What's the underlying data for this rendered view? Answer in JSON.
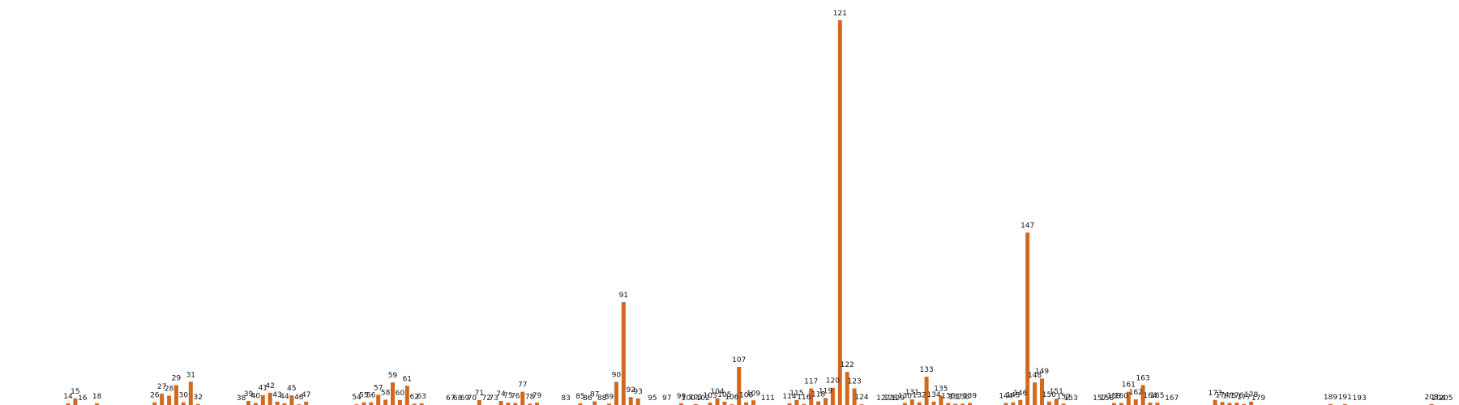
{
  "chart_data": {
    "type": "bar",
    "title": "",
    "xlabel": "",
    "ylabel": "",
    "bar_color": "#d2691e",
    "ylim": [
      0,
      116
    ],
    "grid": false,
    "axes_visible": false,
    "points": [
      {
        "x": 14,
        "y": 0.5
      },
      {
        "x": 15,
        "y": 2.0
      },
      {
        "x": 16,
        "y": 0.0
      },
      {
        "x": 18,
        "y": 0.5
      },
      {
        "x": 26,
        "y": 0.8
      },
      {
        "x": 27,
        "y": 3.4
      },
      {
        "x": 28,
        "y": 2.8
      },
      {
        "x": 29,
        "y": 6.0
      },
      {
        "x": 30,
        "y": 0.8
      },
      {
        "x": 31,
        "y": 7.0
      },
      {
        "x": 32,
        "y": 0.3
      },
      {
        "x": 38,
        "y": 0.0
      },
      {
        "x": 39,
        "y": 1.2
      },
      {
        "x": 40,
        "y": 0.6
      },
      {
        "x": 41,
        "y": 3.0
      },
      {
        "x": 42,
        "y": 3.7
      },
      {
        "x": 43,
        "y": 1.0
      },
      {
        "x": 44,
        "y": 0.5
      },
      {
        "x": 45,
        "y": 2.9
      },
      {
        "x": 46,
        "y": 0.2
      },
      {
        "x": 47,
        "y": 1.0
      },
      {
        "x": 54,
        "y": 0.2
      },
      {
        "x": 55,
        "y": 0.8
      },
      {
        "x": 56,
        "y": 0.8
      },
      {
        "x": 57,
        "y": 3.1
      },
      {
        "x": 58,
        "y": 1.6
      },
      {
        "x": 59,
        "y": 6.8
      },
      {
        "x": 60,
        "y": 1.5
      },
      {
        "x": 61,
        "y": 5.8
      },
      {
        "x": 62,
        "y": 0.4
      },
      {
        "x": 63,
        "y": 0.5
      },
      {
        "x": 67,
        "y": 0.0
      },
      {
        "x": 68,
        "y": 0.0
      },
      {
        "x": 69,
        "y": 0.0
      },
      {
        "x": 70,
        "y": 0.0
      },
      {
        "x": 71,
        "y": 1.5
      },
      {
        "x": 72,
        "y": 0.0
      },
      {
        "x": 73,
        "y": 0.0
      },
      {
        "x": 74,
        "y": 1.2
      },
      {
        "x": 75,
        "y": 0.7
      },
      {
        "x": 76,
        "y": 0.6
      },
      {
        "x": 77,
        "y": 4.0
      },
      {
        "x": 78,
        "y": 0.4
      },
      {
        "x": 79,
        "y": 0.7
      },
      {
        "x": 83,
        "y": 0.0
      },
      {
        "x": 85,
        "y": 0.5
      },
      {
        "x": 86,
        "y": 0.0
      },
      {
        "x": 87,
        "y": 1.1
      },
      {
        "x": 88,
        "y": 0.0
      },
      {
        "x": 89,
        "y": 0.4
      },
      {
        "x": 90,
        "y": 7.0
      },
      {
        "x": 91,
        "y": 31.0
      },
      {
        "x": 92,
        "y": 2.4
      },
      {
        "x": 93,
        "y": 2.0
      },
      {
        "x": 95,
        "y": 0.0
      },
      {
        "x": 97,
        "y": 0.0
      },
      {
        "x": 99,
        "y": 0.5
      },
      {
        "x": 100,
        "y": 0.0
      },
      {
        "x": 101,
        "y": 0.3
      },
      {
        "x": 102,
        "y": 0.0
      },
      {
        "x": 103,
        "y": 0.7
      },
      {
        "x": 104,
        "y": 2.0
      },
      {
        "x": 105,
        "y": 1.0
      },
      {
        "x": 106,
        "y": 0.2
      },
      {
        "x": 107,
        "y": 11.5
      },
      {
        "x": 108,
        "y": 0.8
      },
      {
        "x": 109,
        "y": 1.4
      },
      {
        "x": 111,
        "y": 0.0
      },
      {
        "x": 114,
        "y": 0.5
      },
      {
        "x": 115,
        "y": 1.5
      },
      {
        "x": 116,
        "y": 0.3
      },
      {
        "x": 117,
        "y": 5.0
      },
      {
        "x": 118,
        "y": 1.1
      },
      {
        "x": 119,
        "y": 2.1
      },
      {
        "x": 120,
        "y": 5.2
      },
      {
        "x": 121,
        "y": 116.0
      },
      {
        "x": 122,
        "y": 10.0
      },
      {
        "x": 123,
        "y": 5.0
      },
      {
        "x": 124,
        "y": 0.2
      },
      {
        "x": 127,
        "y": 0.0
      },
      {
        "x": 128,
        "y": 0.0
      },
      {
        "x": 129,
        "y": 0.0
      },
      {
        "x": 130,
        "y": 0.6
      },
      {
        "x": 131,
        "y": 1.7
      },
      {
        "x": 132,
        "y": 0.8
      },
      {
        "x": 133,
        "y": 8.5
      },
      {
        "x": 134,
        "y": 1.0
      },
      {
        "x": 135,
        "y": 2.8
      },
      {
        "x": 136,
        "y": 0.6
      },
      {
        "x": 137,
        "y": 0.4
      },
      {
        "x": 138,
        "y": 0.4
      },
      {
        "x": 139,
        "y": 0.6
      },
      {
        "x": 144,
        "y": 0.6
      },
      {
        "x": 145,
        "y": 0.8
      },
      {
        "x": 146,
        "y": 1.5
      },
      {
        "x": 147,
        "y": 52.0
      },
      {
        "x": 148,
        "y": 6.8
      },
      {
        "x": 149,
        "y": 8.0
      },
      {
        "x": 150,
        "y": 1.0
      },
      {
        "x": 151,
        "y": 1.9
      },
      {
        "x": 152,
        "y": 0.4
      },
      {
        "x": 153,
        "y": 0.0
      },
      {
        "x": 157,
        "y": 0.0
      },
      {
        "x": 158,
        "y": 0.0
      },
      {
        "x": 159,
        "y": 0.6
      },
      {
        "x": 160,
        "y": 0.6
      },
      {
        "x": 161,
        "y": 4.0
      },
      {
        "x": 162,
        "y": 1.7
      },
      {
        "x": 163,
        "y": 6.0
      },
      {
        "x": 164,
        "y": 0.7
      },
      {
        "x": 165,
        "y": 0.7
      },
      {
        "x": 167,
        "y": 0.0
      },
      {
        "x": 173,
        "y": 1.5
      },
      {
        "x": 174,
        "y": 0.9
      },
      {
        "x": 175,
        "y": 0.6
      },
      {
        "x": 176,
        "y": 0.7
      },
      {
        "x": 177,
        "y": 0.3
      },
      {
        "x": 178,
        "y": 1.0
      },
      {
        "x": 179,
        "y": 0.0
      },
      {
        "x": 189,
        "y": 0.3
      },
      {
        "x": 191,
        "y": 0.3
      },
      {
        "x": 193,
        "y": 0.0
      },
      {
        "x": 203,
        "y": 0.3
      },
      {
        "x": 204,
        "y": 0.0
      },
      {
        "x": 205,
        "y": 0.0
      }
    ]
  }
}
